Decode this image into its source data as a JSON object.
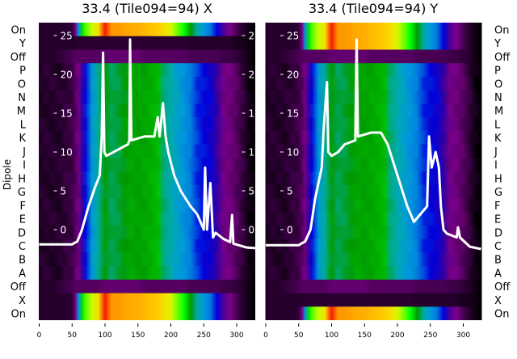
{
  "chart_data": {
    "type": "heatmap",
    "ylabel": "Dipole",
    "row_labels": [
      "On",
      "Y",
      "Off",
      "P",
      "O",
      "N",
      "M",
      "L",
      "K",
      "J",
      "I",
      "H",
      "G",
      "F",
      "E",
      "D",
      "C",
      "B",
      "A",
      "Off",
      "X",
      "On"
    ],
    "x_ticks": [
      0,
      50,
      100,
      150,
      200,
      250,
      300
    ],
    "xlim": [
      0,
      330
    ],
    "inner_y_ticks": [
      0,
      5,
      10,
      15,
      20,
      25
    ],
    "inner_ylim_note": "white curve plotted on inner scale",
    "profile_x": [
      0,
      10,
      20,
      30,
      40,
      50,
      55,
      60,
      65,
      70,
      80,
      90,
      100,
      110,
      120,
      130,
      140,
      150,
      160,
      170,
      180,
      190,
      200,
      210,
      220,
      230,
      240,
      250,
      260,
      270,
      280,
      290,
      300,
      310,
      320,
      330
    ],
    "profiles": {
      "bright": [
        0.03,
        0.03,
        0.03,
        0.03,
        0.03,
        0.04,
        0.1,
        0.3,
        0.55,
        0.62,
        0.66,
        0.72,
        0.86,
        0.8,
        0.8,
        0.79,
        0.78,
        0.78,
        0.77,
        0.76,
        0.75,
        0.72,
        0.68,
        0.63,
        0.6,
        0.45,
        0.36,
        0.3,
        0.25,
        0.2,
        0.13,
        0.1,
        0.06,
        0.03,
        0.01,
        0.0
      ],
      "mid": [
        0.03,
        0.03,
        0.03,
        0.03,
        0.04,
        0.05,
        0.07,
        0.1,
        0.15,
        0.2,
        0.3,
        0.38,
        0.45,
        0.42,
        0.43,
        0.45,
        0.47,
        0.46,
        0.47,
        0.48,
        0.5,
        0.4,
        0.35,
        0.32,
        0.29,
        0.26,
        0.22,
        0.2,
        0.19,
        0.15,
        0.1,
        0.09,
        0.07,
        0.04,
        0.01,
        0.0
      ],
      "off": [
        0.03,
        0.03,
        0.03,
        0.04,
        0.05,
        0.06,
        0.07,
        0.07,
        0.07,
        0.07,
        0.07,
        0.07,
        0.08,
        0.08,
        0.08,
        0.08,
        0.08,
        0.08,
        0.07,
        0.07,
        0.07,
        0.07,
        0.07,
        0.07,
        0.07,
        0.06,
        0.06,
        0.06,
        0.06,
        0.06,
        0.05,
        0.05,
        0.04,
        0.03,
        0.01,
        0.0
      ],
      "dark": [
        0.03,
        0.03,
        0.03,
        0.03,
        0.03,
        0.03,
        0.03,
        0.035,
        0.035,
        0.035,
        0.035,
        0.035,
        0.035,
        0.035,
        0.035,
        0.035,
        0.035,
        0.035,
        0.035,
        0.035,
        0.035,
        0.035,
        0.035,
        0.035,
        0.035,
        0.03,
        0.03,
        0.03,
        0.03,
        0.03,
        0.03,
        0.03,
        0.02,
        0.02,
        0.01,
        0.0
      ]
    },
    "panels": [
      {
        "title": "33.4 (Tile094=94) X",
        "row_types": [
          "bright",
          "dark",
          "off",
          "mid",
          "mid",
          "mid",
          "mid",
          "mid",
          "mid",
          "mid",
          "mid",
          "mid",
          "mid",
          "mid",
          "mid",
          "mid",
          "mid",
          "mid",
          "mid",
          "off",
          "bright",
          "bright"
        ],
        "line": [
          [
            0,
            -1.9
          ],
          [
            50,
            -1.9
          ],
          [
            58,
            -1.5
          ],
          [
            65,
            0
          ],
          [
            75,
            3
          ],
          [
            85,
            5.5
          ],
          [
            92,
            7
          ],
          [
            95,
            12
          ],
          [
            97,
            22.8
          ],
          [
            99,
            10
          ],
          [
            102,
            9.5
          ],
          [
            120,
            10.3
          ],
          [
            135,
            11
          ],
          [
            137,
            11.5
          ],
          [
            138,
            24.5
          ],
          [
            140,
            11.5
          ],
          [
            160,
            12
          ],
          [
            175,
            12
          ],
          [
            180,
            14.5
          ],
          [
            183,
            12
          ],
          [
            188,
            16.3
          ],
          [
            192,
            12
          ],
          [
            196,
            10
          ],
          [
            205,
            7
          ],
          [
            215,
            5
          ],
          [
            230,
            3
          ],
          [
            240,
            2
          ],
          [
            245,
            1
          ],
          [
            250,
            0
          ],
          [
            252,
            8
          ],
          [
            255,
            0
          ],
          [
            260,
            6
          ],
          [
            264,
            -1
          ],
          [
            268,
            -0.4
          ],
          [
            280,
            -1.2
          ],
          [
            290,
            -1.6
          ],
          [
            293,
            1.9
          ],
          [
            295,
            -1.8
          ],
          [
            315,
            -2.3
          ],
          [
            330,
            -2.4
          ]
        ]
      },
      {
        "title": "33.4 (Tile094=94) Y",
        "row_types": [
          "bright",
          "bright",
          "off",
          "mid",
          "mid",
          "mid",
          "mid",
          "mid",
          "mid",
          "mid",
          "mid",
          "mid",
          "mid",
          "mid",
          "mid",
          "mid",
          "mid",
          "mid",
          "mid",
          "off",
          "dark",
          "bright"
        ],
        "line": [
          [
            0,
            -2
          ],
          [
            50,
            -2
          ],
          [
            60,
            -1.5
          ],
          [
            68,
            0
          ],
          [
            75,
            4
          ],
          [
            85,
            8
          ],
          [
            88,
            13
          ],
          [
            93,
            19
          ],
          [
            95,
            10
          ],
          [
            100,
            9.5
          ],
          [
            110,
            10
          ],
          [
            120,
            11
          ],
          [
            136,
            11.5
          ],
          [
            138,
            24.5
          ],
          [
            140,
            12
          ],
          [
            160,
            12.5
          ],
          [
            175,
            12.5
          ],
          [
            185,
            11
          ],
          [
            200,
            7
          ],
          [
            215,
            3
          ],
          [
            225,
            1
          ],
          [
            245,
            3
          ],
          [
            248,
            12
          ],
          [
            252,
            8
          ],
          [
            258,
            10
          ],
          [
            263,
            8
          ],
          [
            266,
            3
          ],
          [
            270,
            0
          ],
          [
            275,
            -0.5
          ],
          [
            290,
            -1
          ],
          [
            292,
            0.3
          ],
          [
            295,
            -1
          ],
          [
            310,
            -2.2
          ],
          [
            327,
            -2.5
          ]
        ]
      }
    ]
  }
}
